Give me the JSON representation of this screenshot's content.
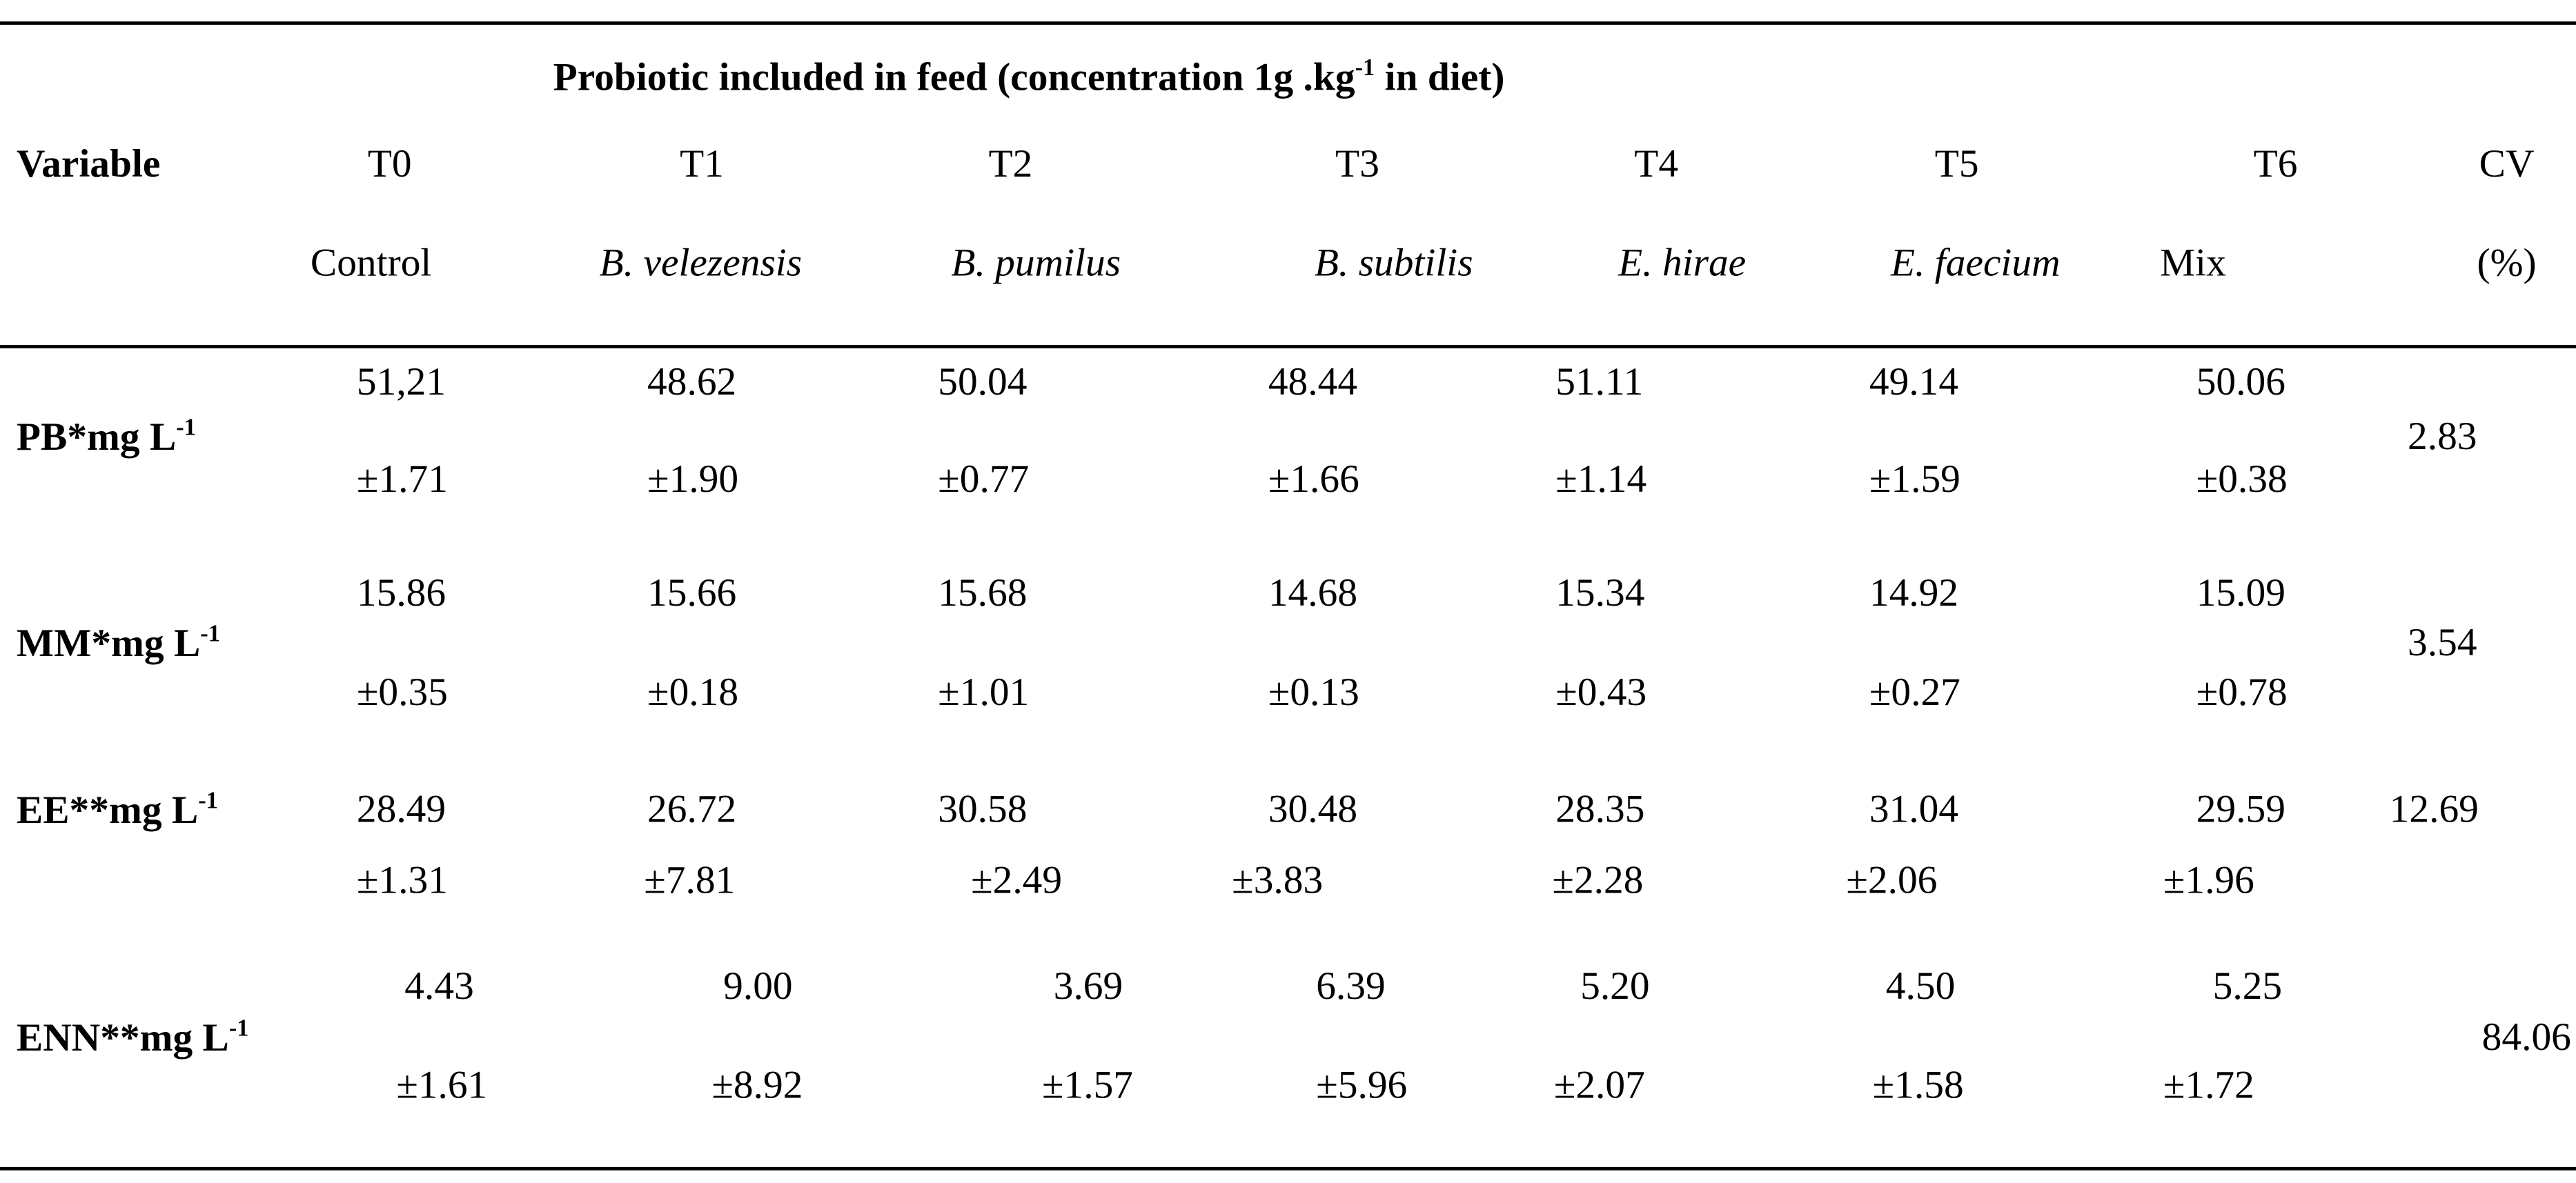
{
  "caption": {
    "text": "Probiotic included in feed (concentration 1g .kg",
    "sup": "-1",
    "tail": " in diet)"
  },
  "columns": {
    "variable": "Variable",
    "codes": [
      "T0",
      "T1",
      "T2",
      "T3",
      "T4",
      "T5",
      "T6"
    ],
    "cv": "CV",
    "names": [
      "Control",
      "B. velezensis",
      "B. pumilus",
      "B. subtilis",
      "E. hirae",
      "E. faecium",
      "Mix"
    ],
    "cv_unit": "(%)"
  },
  "rows": [
    {
      "variable": "PB*mg L",
      "sup": "-1",
      "means": [
        "51,21",
        "48.62",
        "50.04",
        "48.44",
        "51.11",
        "49.14",
        "50.06"
      ],
      "sds": [
        "±1.71",
        "±1.90",
        "±0.77",
        "±1.66",
        "±1.14",
        "±1.59",
        "±0.38"
      ],
      "cv": "2.83"
    },
    {
      "variable": "MM*mg L",
      "sup": "-1",
      "means": [
        "15.86",
        "15.66",
        "15.68",
        "14.68",
        "15.34",
        "14.92",
        "15.09"
      ],
      "sds": [
        "±0.35",
        "±0.18",
        "±1.01",
        "±0.13",
        "±0.43",
        "±0.27",
        "±0.78"
      ],
      "cv": "3.54"
    },
    {
      "variable": "EE**mg L",
      "sup": "-1",
      "means": [
        "28.49",
        "26.72",
        "30.58",
        "30.48",
        "28.35",
        "31.04",
        "29.59"
      ],
      "sds": [
        "±1.31",
        "±7.81",
        "±2.49",
        "±3.83",
        "±2.28",
        "±2.06",
        "±1.96"
      ],
      "cv": "12.69"
    },
    {
      "variable": "ENN**mg L",
      "sup": "-1",
      "means": [
        "4.43",
        "9.00",
        "3.69",
        "6.39",
        "5.20",
        "4.50",
        "5.25"
      ],
      "sds": [
        "±1.61",
        "±8.92",
        "±1.57",
        "±5.96",
        "±2.07",
        "±1.58",
        "±1.72"
      ],
      "cv": "84.06"
    }
  ]
}
